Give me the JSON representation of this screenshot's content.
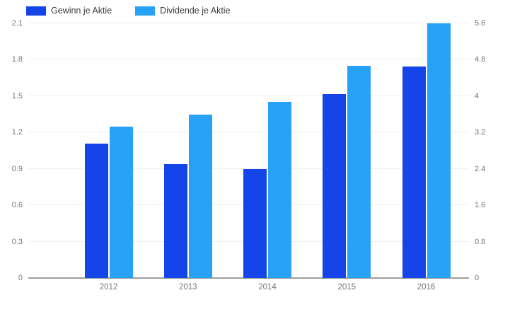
{
  "chart_data": {
    "type": "bar",
    "title": "",
    "xlabel": "",
    "ylabel": "",
    "categories": [
      "2012",
      "2013",
      "2014",
      "2015",
      "2016"
    ],
    "series": [
      {
        "name": "Gewinn je Aktie",
        "color": "#1544e8",
        "axis": "right",
        "values": [
          2.95,
          2.5,
          2.4,
          4.05,
          4.65
        ]
      },
      {
        "name": "Dividende je Aktie",
        "color": "#28a2f6",
        "axis": "left",
        "values": [
          1.25,
          1.35,
          1.45,
          1.75,
          2.1
        ]
      }
    ],
    "left_axis": {
      "min": 0,
      "max": 2.1,
      "ticks": [
        2.1,
        1.8,
        1.5,
        1.2,
        0.9,
        0.6,
        0.3,
        0
      ]
    },
    "right_axis": {
      "min": 0,
      "max": 5.6,
      "ticks": [
        5.6,
        4.8,
        4,
        3.2,
        2.4,
        1.6,
        0.8,
        0
      ]
    },
    "legend_position": "top-left",
    "grid": true,
    "background_color": "#ffffff",
    "gridline_color": "#eeeeee",
    "baseline_color": "#9e9e9e",
    "axis_label_color": "#757575",
    "legend_text_color": "#3c3c3c"
  }
}
